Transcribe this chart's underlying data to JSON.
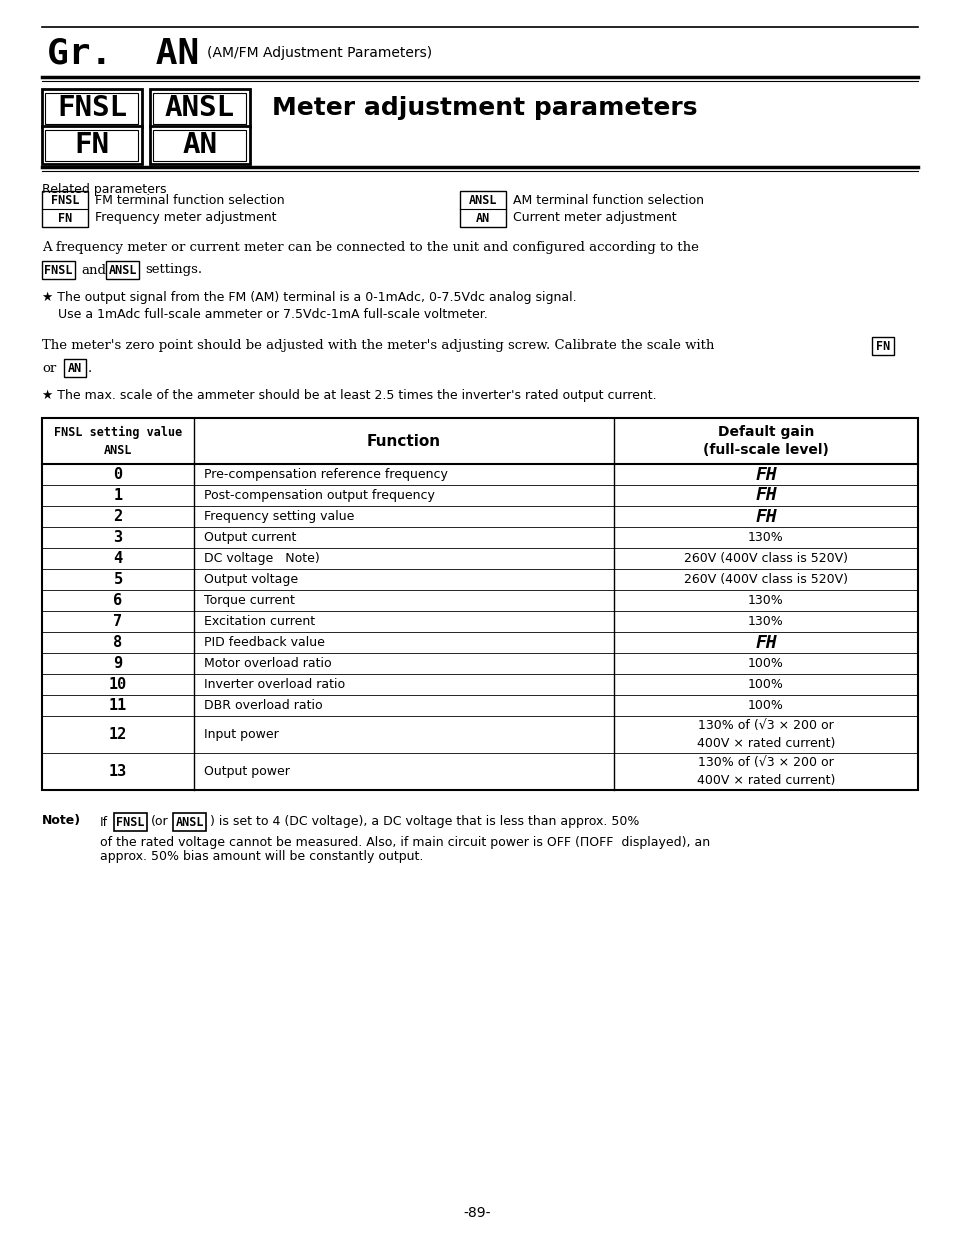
{
  "bg_color": "#ffffff",
  "page_number": "-89-",
  "header_gr": "Gr.  AN",
  "header_sub": "(AM/FM Adjustment Parameters)",
  "section_title": "Meter adjustment parameters",
  "related_title": "Related parameters",
  "related_left": [
    {
      "box": "FNSL",
      "desc": "FM terminal function selection"
    },
    {
      "box": "FN",
      "desc": "Frequency meter adjustment"
    }
  ],
  "related_right": [
    {
      "box": "ANSL",
      "desc": "AM terminal function selection"
    },
    {
      "box": "AN",
      "desc": "Current meter adjustment"
    }
  ],
  "para1a": "A frequency meter or current meter can be connected to the unit and configured according to the",
  "para1b": "settings.",
  "para1_box1": "FNSL",
  "para1_and": "and",
  "para1_box2": "ANSL",
  "bullet1a": "★ The output signal from the FM (AM) terminal is a 0-1mAdc, 0-7.5Vdc analog signal.",
  "bullet1b": "Use a 1mAdc full-scale ammeter or 7.5Vdc-1mA full-scale voltmeter.",
  "para2a": "The meter's zero point should be adjusted with the meter's adjusting screw. Calibrate the scale with",
  "para2_box1": "FN",
  "para2_or": "or",
  "para2_box2": "AN",
  "bullet2": "★ The max. scale of the ammeter should be at least 2.5 times the inverter's rated output current.",
  "tbl_col0_hdr1": "FNSL setting value",
  "tbl_col0_hdr2": "ANSL",
  "tbl_col1_hdr": "Function",
  "tbl_col2_hdr1": "Default gain",
  "tbl_col2_hdr2": "(full-scale level)",
  "table_rows": [
    [
      "0",
      "Pre-compensation reference frequency",
      "FH",
      "fh"
    ],
    [
      "1",
      "Post-compensation output frequency",
      "FH",
      "fh"
    ],
    [
      "2",
      "Frequency setting value",
      "FH",
      "fh"
    ],
    [
      "3",
      "Output current",
      "130%",
      "normal"
    ],
    [
      "4",
      "DC voltage   Note)",
      "260V (400V class is 520V)",
      "normal"
    ],
    [
      "5",
      "Output voltage",
      "260V (400V class is 520V)",
      "normal"
    ],
    [
      "6",
      "Torque current",
      "130%",
      "normal"
    ],
    [
      "7",
      "Excitation current",
      "130%",
      "normal"
    ],
    [
      "8",
      "PID feedback value",
      "FH",
      "fh"
    ],
    [
      "9",
      "Motor overload ratio",
      "100%",
      "normal"
    ],
    [
      "10",
      "Inverter overload ratio",
      "100%",
      "normal"
    ],
    [
      "11",
      "DBR overload ratio",
      "100%",
      "normal"
    ],
    [
      "12",
      "Input power",
      "130% of (√3 × 200 or\n400V × rated current)",
      "normal"
    ],
    [
      "13",
      "Output power",
      "130% of (√3 × 200 or\n400V × rated current)",
      "normal"
    ]
  ],
  "note_label": "Note)",
  "note_if": "If",
  "note_box1": "FNSL",
  "note_or": "(or",
  "note_box2": "ANSL",
  "note_line1_post": ") is set to 4 (DC voltage), a DC voltage that is less than approx. 50%",
  "note_line2": "of the rated voltage cannot be measured. Also, if main circuit power is OFF (ΠOFF  displayed), an",
  "note_line3": "approx. 50% bias amount will be constantly output.",
  "LM": 42,
  "RM": 918
}
